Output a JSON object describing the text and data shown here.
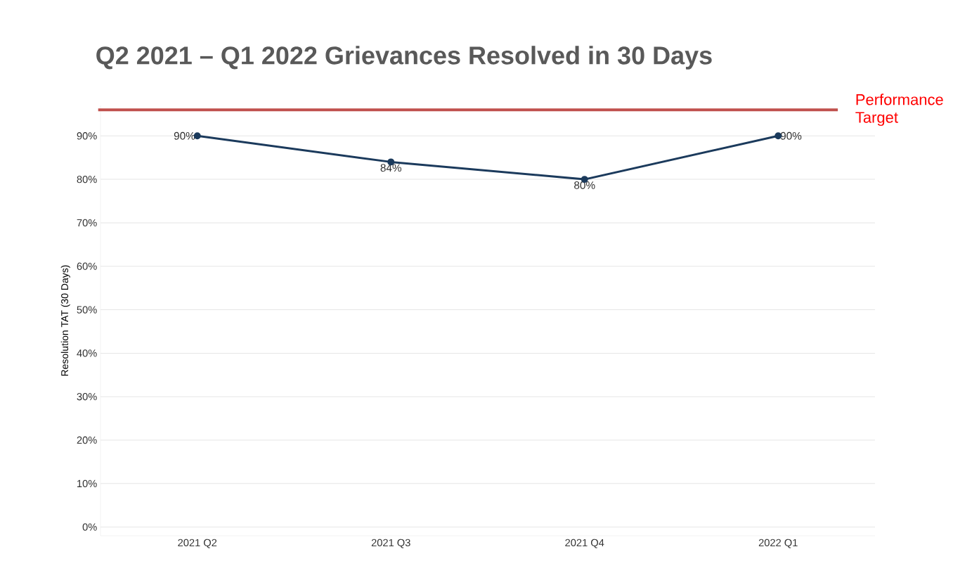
{
  "chart_data": {
    "type": "line",
    "title": "Q2 2021 – Q1 2022 Grievances Resolved in 30 Days",
    "ylabel": "Resolution TAT (30 Days)",
    "categories": [
      "2021 Q2",
      "2021 Q3",
      "2021 Q4",
      "2022 Q1"
    ],
    "series": [
      {
        "color": "#1b3a5c",
        "values": [
          90,
          84,
          80,
          90
        ],
        "value_labels": [
          "90%",
          "84%",
          "80%",
          "90%"
        ]
      }
    ],
    "ylim": [
      -2,
      97
    ],
    "yticks": [
      {
        "value": 0,
        "label": "0%"
      },
      {
        "value": 10,
        "label": "10%"
      },
      {
        "value": 20,
        "label": "20%"
      },
      {
        "value": 30,
        "label": "30%"
      },
      {
        "value": 40,
        "label": "40%"
      },
      {
        "value": 50,
        "label": "50%"
      },
      {
        "value": 60,
        "label": "60%"
      },
      {
        "value": 70,
        "label": "70%"
      },
      {
        "value": 80,
        "label": "80%"
      },
      {
        "value": 90,
        "label": "90%"
      }
    ],
    "ref_lines": [
      {
        "axis": "y",
        "value": 96,
        "label": "Performance Target",
        "color": "#c0504d"
      }
    ],
    "grid": "y",
    "marker": "circle",
    "line_style": "solid"
  }
}
